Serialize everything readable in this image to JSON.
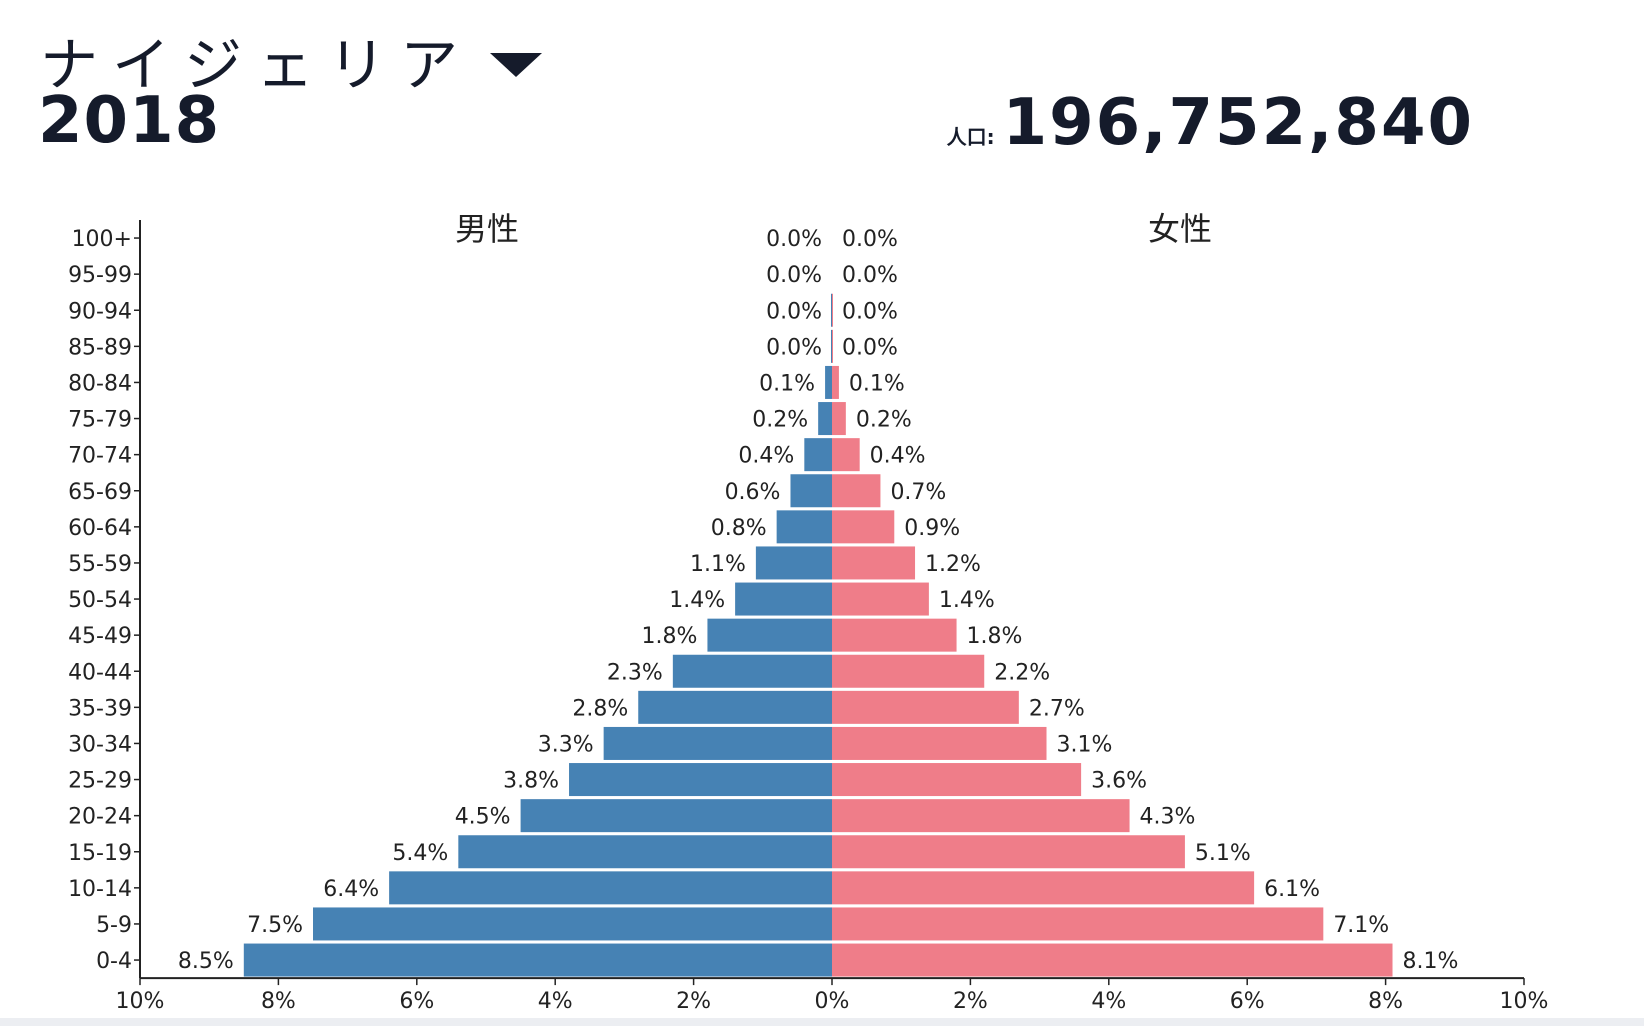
{
  "header": {
    "country": "ナイジェリア",
    "year": "2018",
    "population_label": "人口:",
    "population_value": "196,752,840"
  },
  "colors": {
    "male": "#4682b4",
    "female": "#ef7d89"
  },
  "icons": {
    "dropdown": "caret-down-icon"
  },
  "chart_data": {
    "type": "bar",
    "orientation": "horizontal-pyramid",
    "categories": [
      "100+",
      "95-99",
      "90-94",
      "85-89",
      "80-84",
      "75-79",
      "70-74",
      "65-69",
      "60-64",
      "55-59",
      "50-54",
      "45-49",
      "40-44",
      "35-39",
      "30-34",
      "25-29",
      "20-24",
      "15-19",
      "10-14",
      "5-9",
      "0-4"
    ],
    "series": [
      {
        "name": "男性",
        "values": [
          0.0,
          0.0,
          0.0,
          0.0,
          0.1,
          0.2,
          0.4,
          0.6,
          0.8,
          1.1,
          1.4,
          1.8,
          2.3,
          2.8,
          3.3,
          3.8,
          4.5,
          5.4,
          6.4,
          7.5,
          8.5
        ],
        "labels": [
          "0.0%",
          "0.0%",
          "0.0%",
          "0.0%",
          "0.1%",
          "0.2%",
          "0.4%",
          "0.6%",
          "0.8%",
          "1.1%",
          "1.4%",
          "1.8%",
          "2.3%",
          "2.8%",
          "3.3%",
          "3.8%",
          "4.5%",
          "5.4%",
          "6.4%",
          "7.5%",
          "8.5%"
        ]
      },
      {
        "name": "女性",
        "values": [
          0.0,
          0.0,
          0.0,
          0.0,
          0.1,
          0.2,
          0.4,
          0.7,
          0.9,
          1.2,
          1.4,
          1.8,
          2.2,
          2.7,
          3.1,
          3.6,
          4.3,
          5.1,
          6.1,
          7.1,
          8.1
        ],
        "labels": [
          "0.0%",
          "0.0%",
          "0.0%",
          "0.0%",
          "0.1%",
          "0.2%",
          "0.4%",
          "0.7%",
          "0.9%",
          "1.2%",
          "1.4%",
          "1.8%",
          "2.2%",
          "2.7%",
          "3.1%",
          "3.6%",
          "4.3%",
          "5.1%",
          "6.1%",
          "7.1%",
          "8.1%"
        ]
      }
    ],
    "xlim": [
      0,
      10
    ],
    "x_ticks": [
      "10%",
      "8%",
      "6%",
      "4%",
      "2%",
      "0%",
      "2%",
      "4%",
      "6%",
      "8%",
      "10%"
    ],
    "grid": false
  }
}
